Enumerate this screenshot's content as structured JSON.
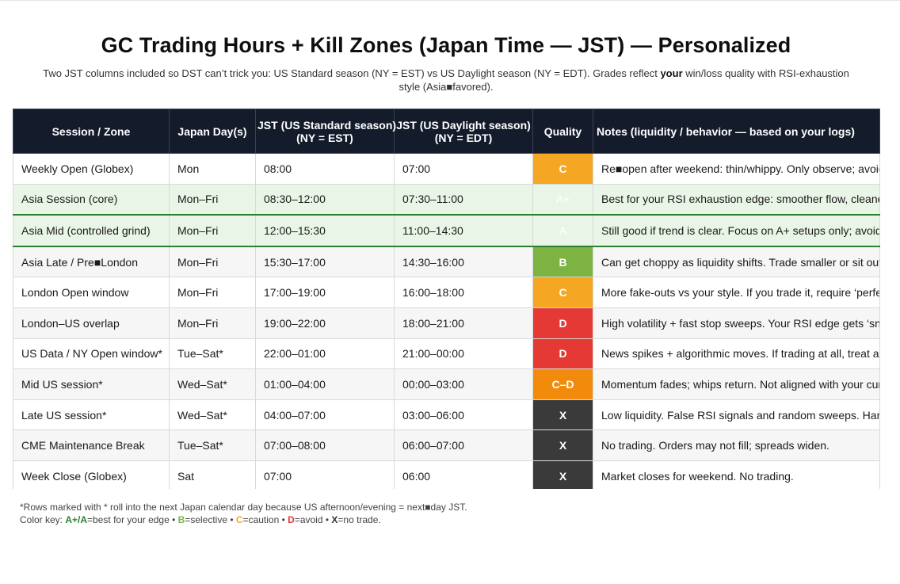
{
  "title": "GC Trading Hours + Kill Zones (Japan Time — JST) — Personalized",
  "subtitle": {
    "part1": "Two JST columns included so DST can’t trick you: US Standard season (NY = EST) vs US Daylight season (NY = EDT). Grades reflect ",
    "bold": "your",
    "part2": " win/loss quality with RSI-exhaustion style (Asia■favored)."
  },
  "colors": {
    "header_bg": "#141c2b",
    "grade_A_plus": "#e9f5e6",
    "grade_B": "#7cb342",
    "grade_C": "#f5a623",
    "grade_C_D": "#f28b0c",
    "grade_D": "#e53935",
    "grade_X": "#3a3a3a"
  },
  "table": {
    "headers": {
      "session": "Session / Zone",
      "days": "Japan Day(s)",
      "jst_standard": "JST (US Standard season)",
      "jst_standard_sub": "(NY = EST)",
      "jst_daylight": "JST (US Daylight season)",
      "jst_daylight_sub": "(NY = EDT)",
      "quality": "Quality",
      "notes": "Notes (liquidity / behavior — based on your logs)"
    },
    "rows": [
      {
        "session": "Weekly Open (Globex)",
        "days": "Mon",
        "std": "08:00",
        "dst": "07:00",
        "quality": "C",
        "notes": "Re■open after weekend: thin/whippy. Only observe; avoid"
      },
      {
        "session": "Asia Session (core)",
        "days": "Mon–Fri",
        "std": "08:30–12:00",
        "dst": "07:30–11:00",
        "quality": "A+",
        "notes": "Best for your RSI exhaustion edge: smoother flow, cleaner"
      },
      {
        "session": "Asia Mid (controlled grind)",
        "days": "Mon–Fri",
        "std": "12:00–15:30",
        "dst": "11:00–14:30",
        "quality": "A",
        "notes": "Still good if trend is clear. Focus on A+ setups only; avoid fo"
      },
      {
        "session": "Asia Late / Pre■London",
        "days": "Mon–Fri",
        "std": "15:30–17:00",
        "dst": "14:30–16:00",
        "quality": "B",
        "notes": "Can get choppy as liquidity shifts. Trade smaller or sit out if"
      },
      {
        "session": "London Open window",
        "days": "Mon–Fri",
        "std": "17:00–19:00",
        "dst": "16:00–18:00",
        "quality": "C",
        "notes": "More fake-outs vs your style. If you trade it, require ‘perfect"
      },
      {
        "session": "London–US overlap",
        "days": "Mon–Fri",
        "std": "19:00–22:00",
        "dst": "18:00–21:00",
        "quality": "D",
        "notes": "High volatility + fast stop sweeps. Your RSI edge gets ‘snat"
      },
      {
        "session": "US Data / NY Open window*",
        "days": "Tue–Sat*",
        "std": "22:00–01:00",
        "dst": "21:00–00:00",
        "quality": "D",
        "notes": "News spikes + algorithmic moves. If trading at all, treat as c"
      },
      {
        "session": "Mid US session*",
        "days": "Wed–Sat*",
        "std": "01:00–04:00",
        "dst": "00:00–03:00",
        "quality": "C–D",
        "notes": "Momentum fades; whips return. Not aligned with your curre"
      },
      {
        "session": "Late US session*",
        "days": "Wed–Sat*",
        "std": "04:00–07:00",
        "dst": "03:00–06:00",
        "quality": "X",
        "notes": "Low liquidity. False RSI signals and random sweeps. Hard"
      },
      {
        "session": "CME Maintenance Break",
        "days": "Tue–Sat*",
        "std": "07:00–08:00",
        "dst": "06:00–07:00",
        "quality": "X",
        "notes": "No trading. Orders may not fill; spreads widen."
      },
      {
        "session": "Week Close (Globex)",
        "days": "Sat",
        "std": "07:00",
        "dst": "06:00",
        "quality": "X",
        "notes": "Market closes for weekend. No trading."
      }
    ]
  },
  "footnote": {
    "line1": "*Rows marked with * roll into the next Japan calendar day because US afternoon/evening = next■day JST.",
    "key_label": "Color key: ",
    "key_a": "A+/A",
    "key_a_text": "=best for your edge • ",
    "key_b": "B",
    "key_b_text": "=selective • ",
    "key_c": "C",
    "key_c_text": "=caution • ",
    "key_d": "D",
    "key_d_text": "=avoid • ",
    "key_x": "X",
    "key_x_text": "=no trade."
  }
}
